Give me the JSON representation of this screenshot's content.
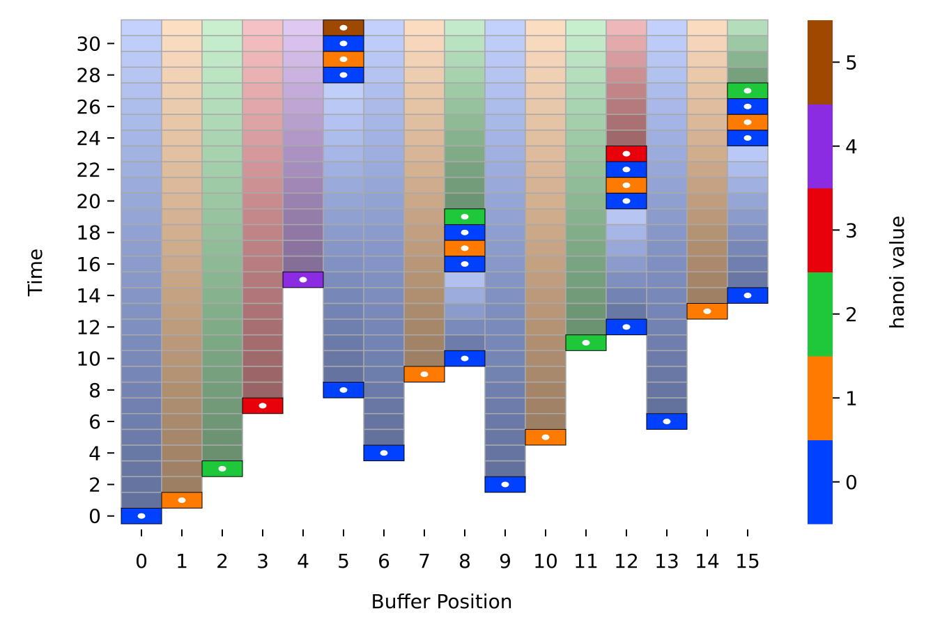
{
  "chart_data": {
    "type": "heatmap",
    "xlabel": "Buffer Position",
    "ylabel": "Time",
    "x_ticks": [
      0,
      1,
      2,
      3,
      4,
      5,
      6,
      7,
      8,
      9,
      10,
      11,
      12,
      13,
      14,
      15
    ],
    "y_ticks": [
      0,
      2,
      4,
      6,
      8,
      10,
      12,
      14,
      16,
      18,
      20,
      22,
      24,
      26,
      28,
      30
    ],
    "xlim": [
      -0.5,
      15.5
    ],
    "ylim": [
      -0.5,
      31.5
    ],
    "colorbar": {
      "label": "hanoi value",
      "ticks": [
        0,
        1,
        2,
        3,
        4,
        5
      ],
      "colors": [
        "#0040ff",
        "#ff7a00",
        "#1ec83a",
        "#e8000b",
        "#8b2be2",
        "#9f4800"
      ]
    },
    "columns": [
      {
        "x": 0,
        "events": [
          {
            "t": 0,
            "v": 0
          }
        ]
      },
      {
        "x": 1,
        "events": [
          {
            "t": 1,
            "v": 1
          }
        ]
      },
      {
        "x": 2,
        "events": [
          {
            "t": 3,
            "v": 2
          }
        ]
      },
      {
        "x": 3,
        "events": [
          {
            "t": 7,
            "v": 3
          }
        ]
      },
      {
        "x": 4,
        "events": [
          {
            "t": 15,
            "v": 4
          }
        ]
      },
      {
        "x": 5,
        "events": [
          {
            "t": 8,
            "v": 0
          },
          {
            "t": 28,
            "v": 0
          },
          {
            "t": 29,
            "v": 1
          },
          {
            "t": 30,
            "v": 0
          },
          {
            "t": 31,
            "v": 5
          }
        ]
      },
      {
        "x": 6,
        "events": [
          {
            "t": 4,
            "v": 0
          }
        ]
      },
      {
        "x": 7,
        "events": [
          {
            "t": 9,
            "v": 1
          }
        ]
      },
      {
        "x": 8,
        "events": [
          {
            "t": 10,
            "v": 0
          },
          {
            "t": 16,
            "v": 0
          },
          {
            "t": 17,
            "v": 1
          },
          {
            "t": 18,
            "v": 0
          },
          {
            "t": 19,
            "v": 2
          }
        ]
      },
      {
        "x": 9,
        "events": [
          {
            "t": 2,
            "v": 0
          }
        ]
      },
      {
        "x": 10,
        "events": [
          {
            "t": 5,
            "v": 1
          }
        ]
      },
      {
        "x": 11,
        "events": [
          {
            "t": 11,
            "v": 2
          }
        ]
      },
      {
        "x": 12,
        "events": [
          {
            "t": 12,
            "v": 0
          },
          {
            "t": 20,
            "v": 0
          },
          {
            "t": 21,
            "v": 1
          },
          {
            "t": 22,
            "v": 0
          },
          {
            "t": 23,
            "v": 3
          }
        ]
      },
      {
        "x": 13,
        "events": [
          {
            "t": 6,
            "v": 0
          }
        ]
      },
      {
        "x": 14,
        "events": [
          {
            "t": 13,
            "v": 1
          }
        ]
      },
      {
        "x": 15,
        "events": [
          {
            "t": 14,
            "v": 0
          },
          {
            "t": 24,
            "v": 0
          },
          {
            "t": 25,
            "v": 1
          },
          {
            "t": 26,
            "v": 0
          },
          {
            "t": 27,
            "v": 2
          }
        ]
      }
    ]
  }
}
